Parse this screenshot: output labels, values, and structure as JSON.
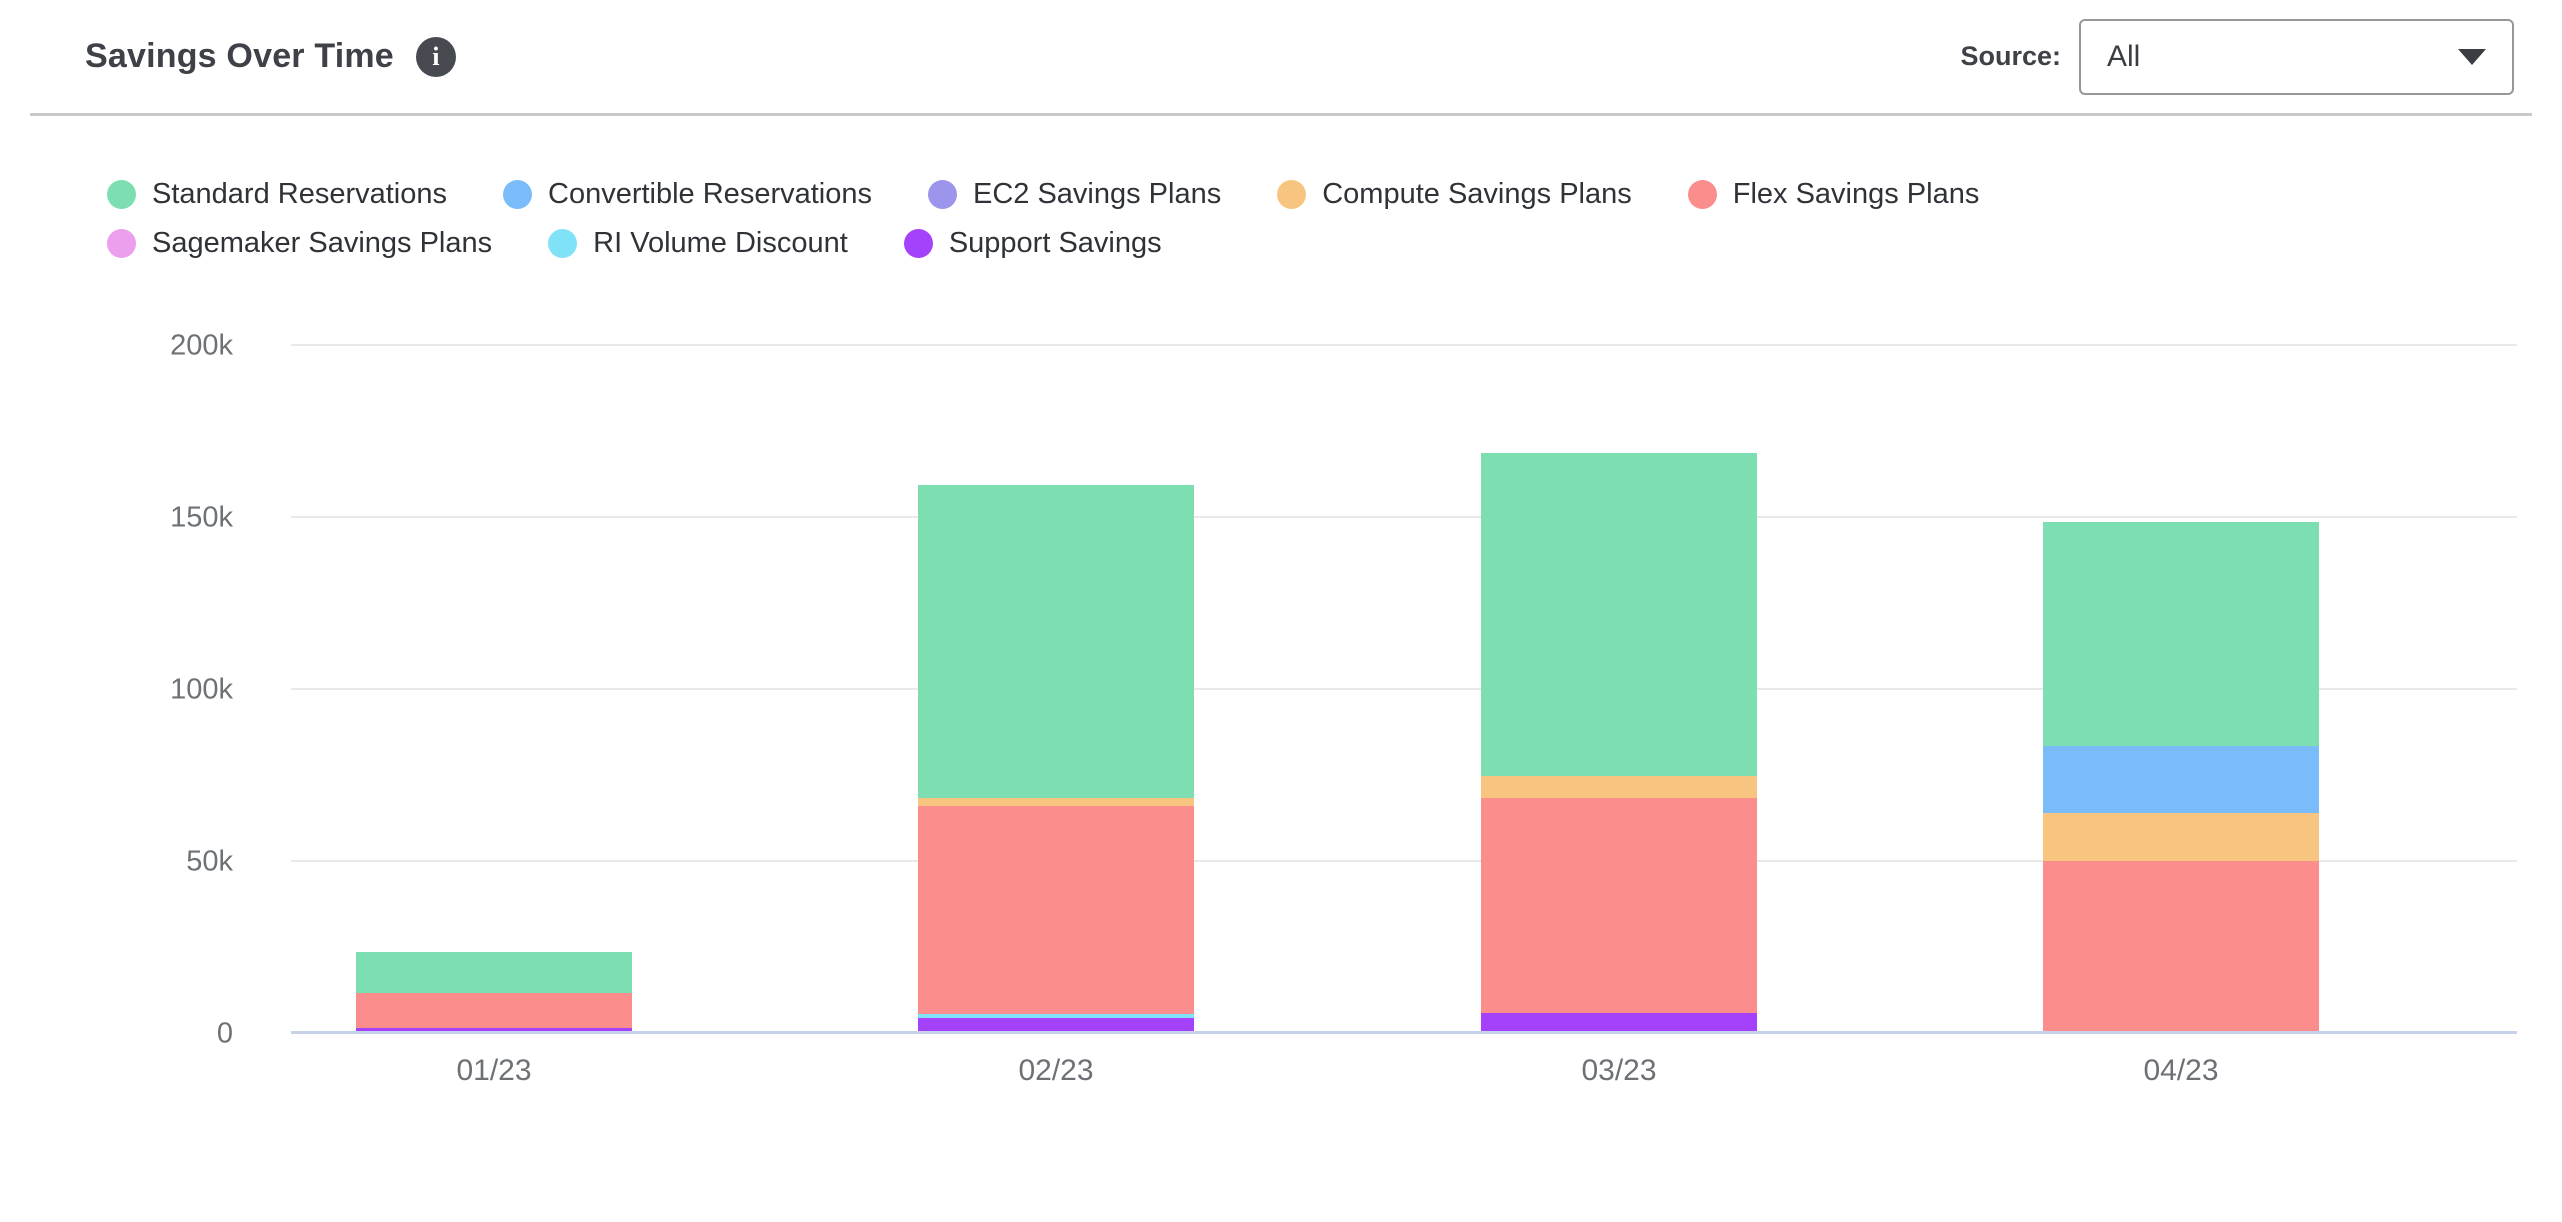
{
  "header": {
    "title": "Savings Over Time",
    "info_icon": "info-circle-icon",
    "source_label": "Source:",
    "source_value": "All"
  },
  "chart_data": {
    "type": "bar",
    "stacked": true,
    "title": "Savings Over Time",
    "unit": "thousands",
    "categories": [
      "01/23",
      "02/23",
      "03/23",
      "04/23"
    ],
    "series": [
      {
        "name": "Standard Reservations",
        "color": "#7CDEB1",
        "values": [
          12,
          91,
          94,
          65
        ]
      },
      {
        "name": "Convertible Reservations",
        "color": "#7ABCFA",
        "values": [
          0,
          0,
          0,
          19.5
        ]
      },
      {
        "name": "EC2 Savings Plans",
        "color": "#9D94EC",
        "values": [
          0,
          0,
          0,
          0
        ]
      },
      {
        "name": "Compute Savings Plans",
        "color": "#F8C580",
        "values": [
          0,
          2.3,
          6.4,
          14
        ]
      },
      {
        "name": "Flex Savings Plans",
        "color": "#FC8D8D",
        "values": [
          10.2,
          60.5,
          62.5,
          49.4
        ]
      },
      {
        "name": "Sagemaker Savings Plans",
        "color": "#EB9FEC",
        "values": [
          0,
          0,
          0,
          0
        ]
      },
      {
        "name": "RI Volume Discount",
        "color": "#80E2F6",
        "values": [
          0,
          1.2,
          0,
          0
        ]
      },
      {
        "name": "Support Savings",
        "color": "#A441FA",
        "values": [
          0.9,
          3.8,
          5.2,
          0
        ]
      }
    ],
    "totals": [
      23.1,
      158.8,
      168.1,
      147.9
    ],
    "stack_order_bottom_to_top": [
      "Support Savings",
      "RI Volume Discount",
      "Sagemaker Savings Plans",
      "Flex Savings Plans",
      "Compute Savings Plans",
      "EC2 Savings Plans",
      "Convertible Reservations",
      "Standard Reservations"
    ],
    "yticks": [
      {
        "label": "0",
        "value": 0
      },
      {
        "label": "50k",
        "value": 50
      },
      {
        "label": "100k",
        "value": 100
      },
      {
        "label": "150k",
        "value": 150
      },
      {
        "label": "200k",
        "value": 200
      }
    ],
    "ylim": [
      0,
      208
    ],
    "grid": "horizontal",
    "legend_position": "top"
  }
}
